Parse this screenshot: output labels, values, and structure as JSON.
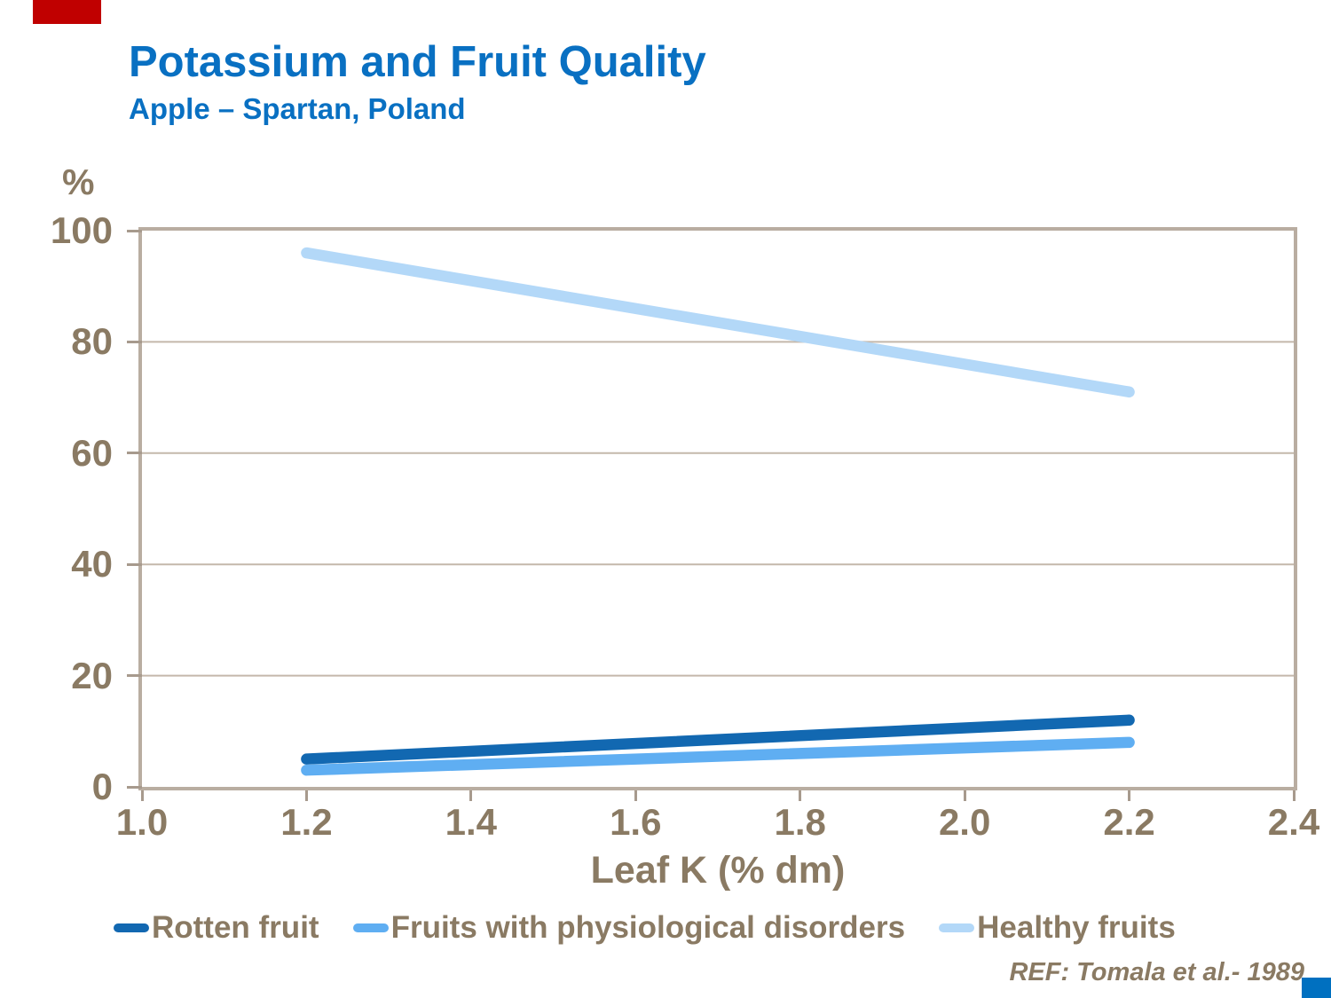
{
  "page": {
    "title": "Potassium and Fruit Quality",
    "subtitle": "Apple – Spartan, Poland",
    "reference": "REF: Tomala et al.- 1989"
  },
  "colors": {
    "title_blue": "#0970C2",
    "text_brown": "#8A7A63",
    "axis_border_tan": "#B9ADA1",
    "gridline_tan": "#C4B8AB",
    "tick_tan": "#A79A8D",
    "red_accent": "#C00000",
    "blue_accent": "#0070C0",
    "rotten_fruit_line": "#1268B1",
    "disorders_line": "#5FAEF2",
    "healthy_fruits_line": "#B3D8F8"
  },
  "chart_data": {
    "type": "line",
    "title": "Potassium and Fruit Quality",
    "subtitle": "Apple – Spartan, Poland",
    "xlabel": "Leaf K (% dm)",
    "ylabel": "%",
    "xlim": [
      1.0,
      2.4
    ],
    "ylim": [
      0,
      100
    ],
    "x_ticks": [
      1.0,
      1.2,
      1.4,
      1.6,
      1.8,
      2.0,
      2.2,
      2.4
    ],
    "x_tick_labels": [
      "1.0",
      "1.2",
      "1.4",
      "1.6",
      "1.8",
      "2.0",
      "2.2",
      "2.4"
    ],
    "y_ticks": [
      0,
      20,
      40,
      60,
      80,
      100
    ],
    "y_tick_labels": [
      "0",
      "20",
      "40",
      "60",
      "80",
      "100"
    ],
    "grid": "horizontal",
    "legend_position": "bottom",
    "series": [
      {
        "name": "Rotten fruit",
        "color": "#1268B1",
        "x": [
          1.2,
          2.2
        ],
        "values": [
          5,
          12
        ]
      },
      {
        "name": "Fruits with physiological disorders",
        "color": "#5FAEF2",
        "x": [
          1.2,
          2.2
        ],
        "values": [
          3,
          8
        ]
      },
      {
        "name": "Healthy fruits",
        "color": "#B3D8F8",
        "x": [
          1.2,
          2.2
        ],
        "values": [
          96,
          71
        ]
      }
    ]
  }
}
